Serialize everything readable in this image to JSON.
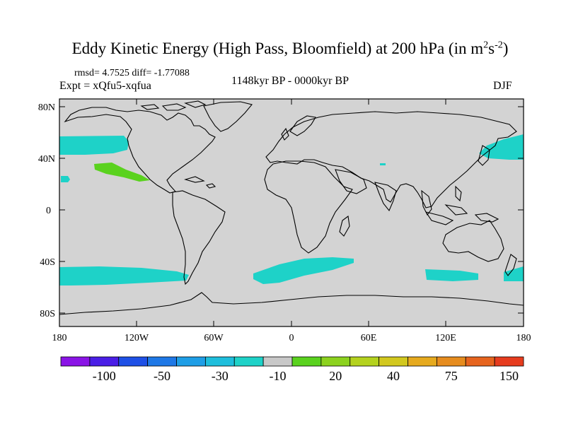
{
  "header": {
    "title_main": "Eddy Kinetic Energy (High Pass, Bloomfield) at 200 hPa (in m",
    "title_sup1": "2",
    "title_mid": "s",
    "title_sup2": "-2",
    "title_end": ")",
    "stats": "rmsd= 4.7525 diff= -1.77088",
    "expt": "Expt = xQfu5-xqfua",
    "period": "1148kyr BP - 0000kyr BP",
    "season": "DJF"
  },
  "map": {
    "land_color": "#d3d3d3",
    "lat_labels": [
      "80N",
      "40N",
      "0",
      "40S",
      "80S"
    ],
    "lon_labels": [
      "180",
      "120W",
      "60W",
      "0",
      "60E",
      "120E",
      "180"
    ]
  },
  "colorbar": {
    "colors": [
      "#8a14e6",
      "#4a1ee6",
      "#1e50e6",
      "#1e78e6",
      "#1e9ee6",
      "#1ebedc",
      "#1ed2c8",
      "#c8c8c8",
      "#5ad21e",
      "#8cd21e",
      "#b4d21e",
      "#d2c81e",
      "#e6aa1e",
      "#e68c1e",
      "#e6641e",
      "#e63c1e"
    ],
    "labels": [
      "-100",
      "-50",
      "-30",
      "-10",
      "20",
      "40",
      "75",
      "150"
    ],
    "label_boundaries": [
      2,
      4,
      6,
      8,
      10,
      12,
      14,
      16
    ]
  }
}
